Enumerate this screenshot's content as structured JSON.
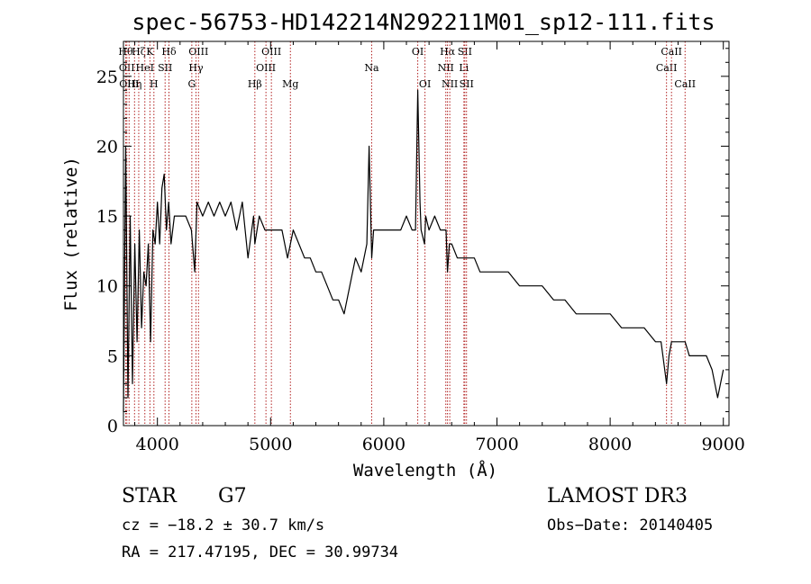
{
  "chart_data": {
    "type": "line",
    "title": "spec-56753-HD142214N292211M01_sp12-111.fits",
    "xlabel": "Wavelength (Å)",
    "ylabel": "Flux (relative)",
    "xlim": [
      3700,
      9050
    ],
    "ylim": [
      0,
      27.5
    ],
    "x_ticks": [
      4000,
      5000,
      6000,
      7000,
      8000,
      9000
    ],
    "x_tick_labels": [
      "4000",
      "5000",
      "6000",
      "7000",
      "8000",
      "9000"
    ],
    "y_ticks": [
      0,
      5,
      10,
      15,
      20,
      25
    ],
    "y_tick_labels": [
      "0",
      "5",
      "10",
      "15",
      "20",
      "25"
    ],
    "line_color": "#000000",
    "marker_color": "#b22222",
    "series": [
      {
        "x": [
          3700,
          3720,
          3740,
          3760,
          3780,
          3800,
          3820,
          3840,
          3860,
          3880,
          3900,
          3920,
          3940,
          3960,
          3980,
          4000,
          4020,
          4040,
          4060,
          4080,
          4100,
          4120,
          4150,
          4200,
          4250,
          4300,
          4330,
          4350,
          4400,
          4450,
          4500,
          4550,
          4600,
          4650,
          4700,
          4750,
          4800,
          4850,
          4861,
          4900,
          4950,
          5000,
          5050,
          5100,
          5150,
          5200,
          5250,
          5300,
          5350,
          5400,
          5450,
          5500,
          5550,
          5600,
          5650,
          5700,
          5750,
          5800,
          5850,
          5870,
          5893,
          5910,
          5950,
          6000,
          6050,
          6100,
          6150,
          6200,
          6250,
          6280,
          6300,
          6320,
          6330,
          6360,
          6370,
          6400,
          6450,
          6500,
          6550,
          6563,
          6580,
          6600,
          6650,
          6700,
          6750,
          6800,
          6850,
          6900,
          6950,
          7000,
          7100,
          7200,
          7300,
          7400,
          7500,
          7600,
          7700,
          7800,
          7900,
          8000,
          8100,
          8200,
          8300,
          8400,
          8450,
          8498,
          8520,
          8542,
          8560,
          8600,
          8662,
          8700,
          8750,
          8800,
          8850,
          8900,
          8950,
          9000
        ],
        "y": [
          1,
          20,
          2,
          15,
          3,
          13,
          6,
          14,
          7,
          11,
          10,
          13,
          6,
          14,
          13,
          16,
          13,
          17,
          18,
          14,
          16,
          13,
          15,
          15,
          15,
          14,
          11,
          16,
          15,
          16,
          15,
          16,
          15,
          16,
          14,
          16,
          12,
          15,
          13,
          15,
          14,
          14,
          14,
          14,
          12,
          14,
          13,
          12,
          12,
          11,
          11,
          10,
          9,
          9,
          8,
          10,
          12,
          11,
          13,
          20,
          12,
          14,
          14,
          14,
          14,
          14,
          14,
          15,
          14,
          14,
          24,
          16,
          14,
          13,
          15,
          14,
          15,
          14,
          14,
          11,
          13,
          13,
          12,
          12,
          12,
          12,
          11,
          11,
          11,
          11,
          11,
          10,
          10,
          10,
          9,
          9,
          8,
          8,
          8,
          8,
          7,
          7,
          7,
          6,
          6,
          3,
          5,
          6,
          6,
          6,
          6,
          5,
          5,
          5,
          5,
          4,
          2,
          4
        ]
      }
    ],
    "line_markers": [
      {
        "x": 3720,
        "label": "Hθ",
        "row": 0
      },
      {
        "x": 3730,
        "label": "OII",
        "row": 1
      },
      {
        "x": 3750,
        "label": "OIII",
        "row": 2
      },
      {
        "x": 3798,
        "label": "Hη",
        "row": 2
      },
      {
        "x": 3835,
        "label": "Hζ",
        "row": 0
      },
      {
        "x": 3889,
        "label": "HeI",
        "row": 1
      },
      {
        "x": 3934,
        "label": "K",
        "row": 0
      },
      {
        "x": 3969,
        "label": "H",
        "row": 2
      },
      {
        "x": 4068,
        "label": "SII",
        "row": 1
      },
      {
        "x": 4102,
        "label": "Hδ",
        "row": 0
      },
      {
        "x": 4304,
        "label": "G",
        "row": 2
      },
      {
        "x": 4341,
        "label": "Hγ",
        "row": 1
      },
      {
        "x": 4363,
        "label": "OIII",
        "row": 0
      },
      {
        "x": 4861,
        "label": "Hβ",
        "row": 2
      },
      {
        "x": 4959,
        "label": "OIII",
        "row": 1
      },
      {
        "x": 5007,
        "label": "OIII",
        "row": 0
      },
      {
        "x": 5175,
        "label": "Mg",
        "row": 2
      },
      {
        "x": 5893,
        "label": "Na",
        "row": 1
      },
      {
        "x": 6300,
        "label": "OI",
        "row": 0
      },
      {
        "x": 6364,
        "label": "OI",
        "row": 2
      },
      {
        "x": 6548,
        "label": "NII",
        "row": 1
      },
      {
        "x": 6563,
        "label": "Hα",
        "row": 0
      },
      {
        "x": 6583,
        "label": "NII",
        "row": 2
      },
      {
        "x": 6708,
        "label": "Li",
        "row": 1
      },
      {
        "x": 6716,
        "label": "SII",
        "row": 0
      },
      {
        "x": 6731,
        "label": "SII",
        "row": 2
      },
      {
        "x": 8498,
        "label": "CaII",
        "row": 1
      },
      {
        "x": 8542,
        "label": "CaII",
        "row": 0
      },
      {
        "x": 8662,
        "label": "CaII",
        "row": 2
      }
    ]
  },
  "info": {
    "object_type": "STAR",
    "subclass": "G7",
    "survey": "LAMOST DR3",
    "redshift": "cz = −18.2 ± 30.7 km/s",
    "obs_date": "Obs−Date: 20140405",
    "coordinates": "RA = 217.47195, DEC =  30.99734"
  }
}
